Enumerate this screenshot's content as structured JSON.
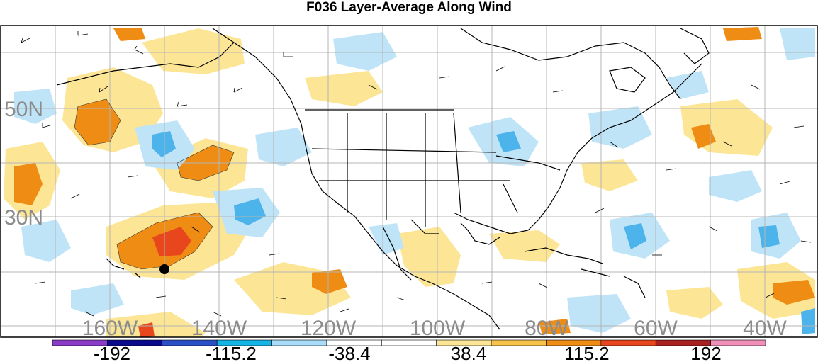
{
  "title": "F036 Layer-Average Along Wind",
  "latitude_labels": [
    "50N",
    "30N"
  ],
  "longitude_labels": [
    "160W",
    "140W",
    "120W",
    "100W",
    "80W",
    "60W",
    "40W"
  ],
  "colorbar": {
    "colors": [
      "#8a3cc8",
      "#0a0a8c",
      "#2a50c8",
      "#14b4e6",
      "#a8dcf8",
      "#ffffff",
      "#ffffff",
      "#fce696",
      "#f6c24a",
      "#ee8c14",
      "#e8461c",
      "#a82020",
      "#f090b8"
    ],
    "tick_labels": [
      "-192",
      "-115.2",
      "-38.4",
      "38.4",
      "115.2",
      "192"
    ]
  },
  "colors": {
    "positive_light": "#fce696",
    "positive_mid": "#f6c24a",
    "positive_strong": "#ee8c14",
    "positive_max": "#e8461c",
    "negative_light": "#bfe4f8",
    "negative_mid": "#4cb4ea",
    "land_outline": "#000000",
    "grid": "#b4b4b4"
  },
  "marker": "filled-circle"
}
